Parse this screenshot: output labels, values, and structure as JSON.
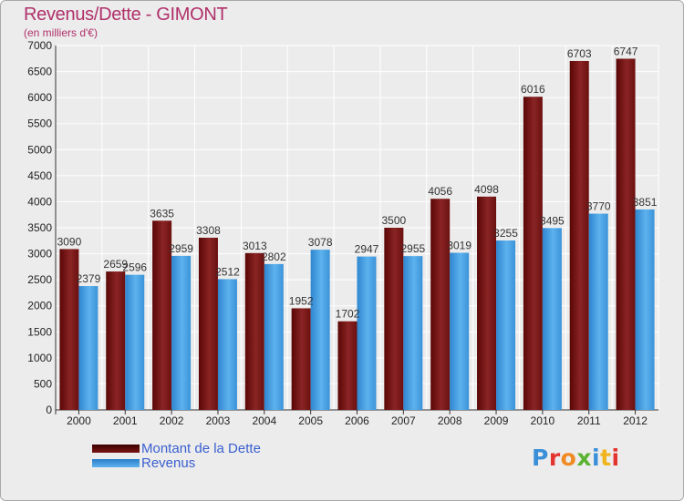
{
  "header": {
    "title": "Revenus/Dette - GIMONT",
    "subtitle": "(en milliers d'€)"
  },
  "legend": {
    "items": [
      {
        "label": "Montant de la Dette",
        "color": "#6b0a0a"
      },
      {
        "label": "Revenus",
        "color": "#3e9ce0"
      }
    ]
  },
  "brand": {
    "text": "Proxiti",
    "colors": [
      "#3a8fd8",
      "#e3342f",
      "#f08a24",
      "#5ab331",
      "#3a8fd8",
      "#f0b41c",
      "#e3342f"
    ]
  },
  "chart_data": {
    "type": "bar",
    "title": "Revenus/Dette - GIMONT",
    "ylabel": "(en milliers d'€)",
    "xlabel": "",
    "ylim": [
      0,
      7000
    ],
    "yticks": [
      0,
      500,
      1000,
      1500,
      2000,
      2500,
      3000,
      3500,
      4000,
      4500,
      5000,
      5500,
      6000,
      6500,
      7000
    ],
    "grid": true,
    "legend_position": "bottom-left",
    "categories": [
      "2000",
      "2001",
      "2002",
      "2003",
      "2004",
      "2005",
      "2006",
      "2007",
      "2008",
      "2009",
      "2010",
      "2011",
      "2012"
    ],
    "series": [
      {
        "name": "Montant de la Dette",
        "color": "#7a1414",
        "values": [
          3090,
          2659,
          3635,
          3308,
          3013,
          1952,
          1702,
          3500,
          4056,
          4098,
          6016,
          6703,
          6747
        ]
      },
      {
        "name": "Revenus",
        "color": "#4aa3e3",
        "values": [
          2379,
          2596,
          2959,
          2512,
          2802,
          3078,
          2947,
          2955,
          3019,
          3255,
          3495,
          3770,
          3851
        ]
      }
    ]
  }
}
